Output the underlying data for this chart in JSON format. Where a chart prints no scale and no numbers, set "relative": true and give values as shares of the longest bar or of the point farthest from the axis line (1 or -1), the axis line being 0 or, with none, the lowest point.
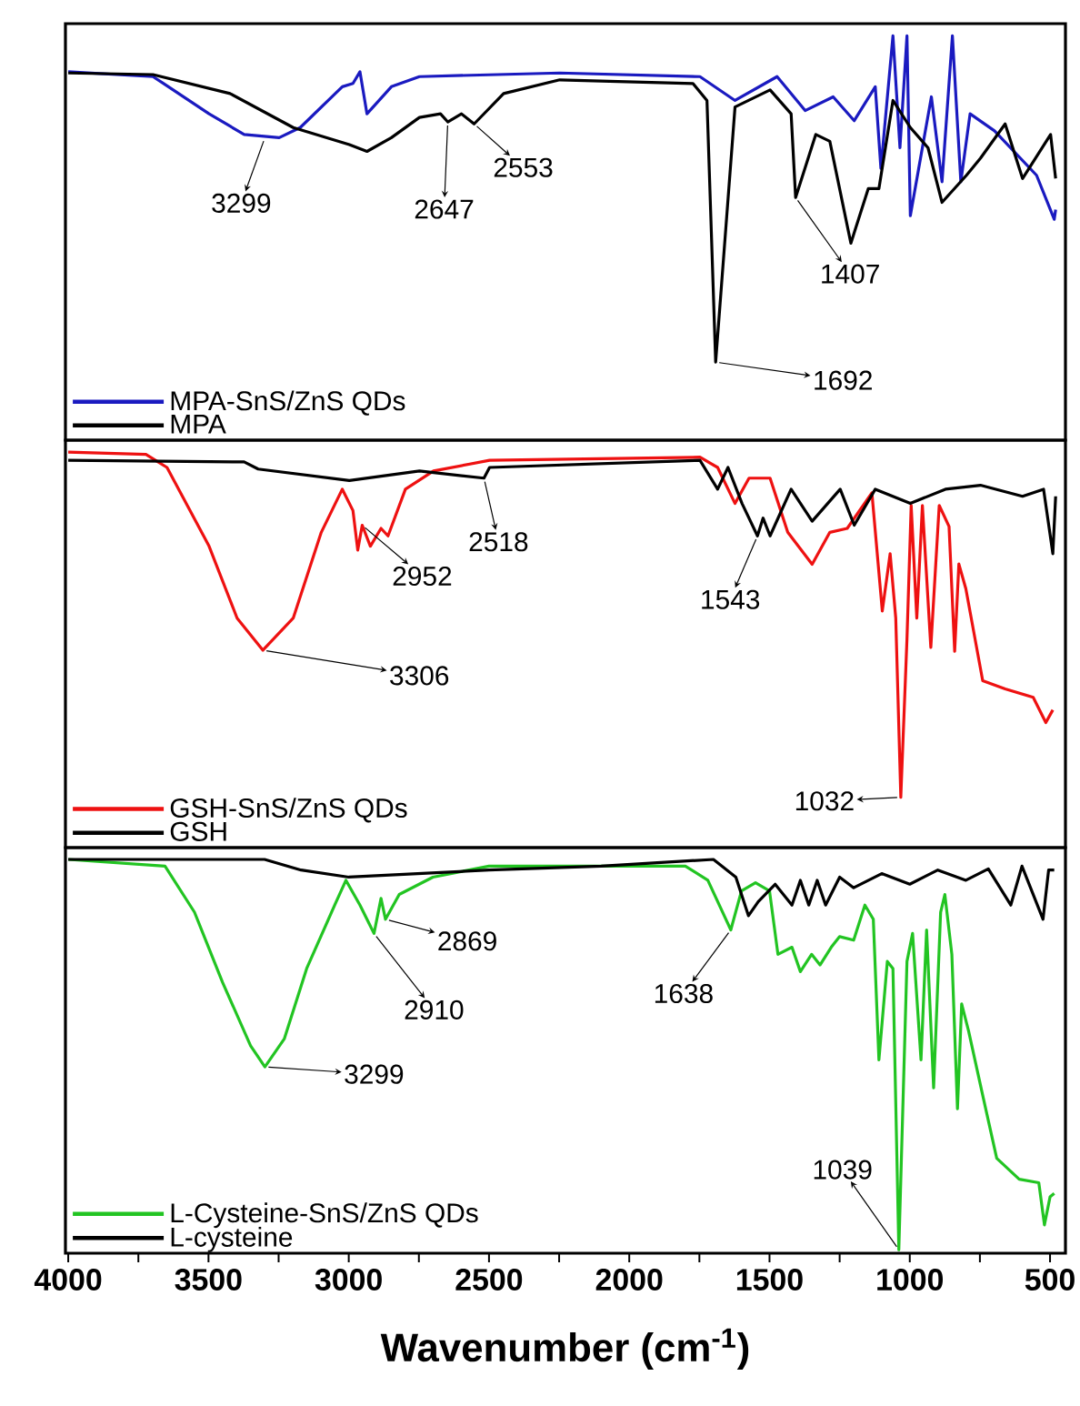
{
  "chart_data": [
    {
      "type": "line",
      "relative": true,
      "xlim": [
        4010,
        445
      ],
      "tick_labels": false,
      "legend": "bottom left",
      "annotations": [
        {
          "text": "3299",
          "x": 3299,
          "y": 0.748
        },
        {
          "text": "2647",
          "x": 2647,
          "y": 0.787
        },
        {
          "text": "2553",
          "x": 2553,
          "y": 0.782
        },
        {
          "text": "1407",
          "x": 1407,
          "y": 0.6
        },
        {
          "text": "1692",
          "x": 1692,
          "y": 0.193
        }
      ],
      "series": [
        {
          "name": "MPA-SnS/ZnS QDs",
          "color": "#1a1ac0",
          "x": [
            4000,
            3698,
            3660,
            3498,
            3373,
            3248,
            3173,
            3023,
            2985,
            2960,
            2935,
            2848,
            2748,
            2248,
            1748,
            1623,
            1473,
            1373,
            1273,
            1198,
            1123,
            1103,
            1060,
            1035,
            1010,
            998,
            923,
            885,
            848,
            818,
            785,
            698,
            548,
            485,
            480
          ],
          "values": [
            0.911,
            0.899,
            0.882,
            0.807,
            0.756,
            0.748,
            0.773,
            0.874,
            0.882,
            0.911,
            0.807,
            0.874,
            0.899,
            0.908,
            0.899,
            0.84,
            0.899,
            0.815,
            0.849,
            0.79,
            0.874,
            0.672,
            1.0,
            0.723,
            1.0,
            0.555,
            0.849,
            0.639,
            1.0,
            0.639,
            0.807,
            0.765,
            0.655,
            0.546,
            0.57
          ]
        },
        {
          "name": "MPA",
          "color": "#000000",
          "x": [
            4000,
            3698,
            3423,
            3198,
            2998,
            2935,
            2848,
            2748,
            2673,
            2647,
            2598,
            2553,
            2448,
            2248,
            1773,
            1723,
            1692,
            1623,
            1498,
            1423,
            1407,
            1335,
            1285,
            1210,
            1148,
            1110,
            1060,
            998,
            935,
            885,
            798,
            748,
            660,
            598,
            498,
            480
          ],
          "values": [
            0.908,
            0.904,
            0.857,
            0.773,
            0.731,
            0.714,
            0.748,
            0.798,
            0.807,
            0.787,
            0.807,
            0.782,
            0.857,
            0.891,
            0.882,
            0.84,
            0.193,
            0.824,
            0.866,
            0.807,
            0.6,
            0.756,
            0.739,
            0.487,
            0.622,
            0.622,
            0.84,
            0.773,
            0.723,
            0.588,
            0.655,
            0.697,
            0.782,
            0.647,
            0.756,
            0.647
          ]
        }
      ]
    },
    {
      "type": "line",
      "relative": true,
      "xlim": [
        4010,
        445
      ],
      "tick_labels": false,
      "legend": "bottom left",
      "annotations": [
        {
          "text": "3306",
          "x": 3306,
          "y": 0.499
        },
        {
          "text": "2952",
          "x": 2952,
          "y": 0.815
        },
        {
          "text": "2518",
          "x": 2518,
          "y": 0.934
        },
        {
          "text": "1543",
          "x": 1543,
          "y": 0.788
        },
        {
          "text": "1032",
          "x": 1032,
          "y": 0.127
        }
      ],
      "series": [
        {
          "name": "GSH-SnS/ZnS QDs",
          "color": "#ee1111",
          "x": [
            4000,
            3723,
            3648,
            3498,
            3398,
            3306,
            3198,
            3098,
            3023,
            2985,
            2968,
            2952,
            2923,
            2885,
            2860,
            2798,
            2698,
            2498,
            1748,
            1685,
            1623,
            1573,
            1498,
            1435,
            1348,
            1285,
            1223,
            1135,
            1098,
            1070,
            1050,
            1032,
            1010,
            995,
            975,
            955,
            925,
            895,
            860,
            840,
            825,
            800,
            740,
            660,
            560,
            515,
            490
          ],
          "values": [
            1.0,
            0.994,
            0.961,
            0.762,
            0.58,
            0.499,
            0.58,
            0.797,
            0.906,
            0.852,
            0.752,
            0.815,
            0.762,
            0.807,
            0.788,
            0.906,
            0.952,
            0.979,
            0.987,
            0.961,
            0.87,
            0.934,
            0.934,
            0.797,
            0.716,
            0.797,
            0.807,
            0.897,
            0.598,
            0.743,
            0.58,
            0.127,
            0.527,
            0.865,
            0.58,
            0.865,
            0.506,
            0.865,
            0.812,
            0.496,
            0.717,
            0.654,
            0.422,
            0.401,
            0.38,
            0.316,
            0.348
          ]
        },
        {
          "name": "GSH",
          "color": "#000000",
          "x": [
            4000,
            3373,
            3323,
            2998,
            2748,
            2518,
            2498,
            1748,
            1685,
            1648,
            1598,
            1543,
            1523,
            1498,
            1423,
            1348,
            1248,
            1198,
            1123,
            998,
            873,
            748,
            598,
            523,
            490,
            480
          ],
          "values": [
            0.979,
            0.975,
            0.957,
            0.928,
            0.952,
            0.934,
            0.961,
            0.979,
            0.906,
            0.961,
            0.87,
            0.788,
            0.833,
            0.788,
            0.906,
            0.825,
            0.906,
            0.815,
            0.906,
            0.87,
            0.906,
            0.916,
            0.888,
            0.906,
            0.743,
            0.888
          ]
        }
      ]
    },
    {
      "type": "line",
      "relative": true,
      "xlim": [
        4010,
        445
      ],
      "tick_labels": "x",
      "legend": "bottom left",
      "xlabel": "Wavenumber (cm$^{-1}$)",
      "xticks": [
        4000,
        {
          "value": 3750,
          "label": null
        },
        3500,
        {
          "value": 3250,
          "label": null
        },
        3000,
        {
          "value": 2750,
          "label": null
        },
        2500,
        {
          "value": 2250,
          "label": null
        },
        2000,
        {
          "value": 1750,
          "label": null
        },
        1500,
        {
          "value": 1250,
          "label": null
        },
        1000,
        {
          "value": 750,
          "label": null
        },
        500
      ],
      "annotations": [
        {
          "text": "3299",
          "x": 3299,
          "y": 0.473
        },
        {
          "text": "2910",
          "x": 2910,
          "y": 0.812
        },
        {
          "text": "2869",
          "x": 2869,
          "y": 0.848
        },
        {
          "text": "1638",
          "x": 1638,
          "y": 0.821
        },
        {
          "text": "1039",
          "x": 1039,
          "y": 0.009
        }
      ],
      "series": [
        {
          "name": "L-Cysteine-SnS/ZnS QDs",
          "color": "#22c422",
          "x": [
            4000,
            3655,
            3550,
            3450,
            3350,
            3299,
            3230,
            3150,
            3050,
            3010,
            2960,
            2910,
            2885,
            2869,
            2820,
            2700,
            2500,
            1800,
            1720,
            1638,
            1600,
            1550,
            1500,
            1470,
            1420,
            1390,
            1350,
            1320,
            1280,
            1250,
            1200,
            1160,
            1130,
            1110,
            1080,
            1060,
            1039,
            1010,
            990,
            960,
            940,
            915,
            890,
            875,
            850,
            830,
            815,
            790,
            740,
            690,
            610,
            540,
            520,
            500,
            485
          ],
          "values": [
            1.0,
            0.983,
            0.866,
            0.688,
            0.527,
            0.473,
            0.544,
            0.723,
            0.884,
            0.947,
            0.884,
            0.812,
            0.901,
            0.848,
            0.911,
            0.955,
            0.983,
            0.983,
            0.947,
            0.821,
            0.92,
            0.941,
            0.92,
            0.759,
            0.777,
            0.715,
            0.759,
            0.732,
            0.777,
            0.804,
            0.795,
            0.884,
            0.848,
            0.491,
            0.741,
            0.723,
            0.009,
            0.741,
            0.812,
            0.491,
            0.821,
            0.42,
            0.866,
            0.911,
            0.759,
            0.367,
            0.633,
            0.563,
            0.401,
            0.241,
            0.188,
            0.179,
            0.072,
            0.143,
            0.152
          ]
        },
        {
          "name": "L-cysteine",
          "color": "#000000",
          "x": [
            4000,
            3300,
            3170,
            3000,
            2500,
            2100,
            1700,
            1620,
            1575,
            1540,
            1480,
            1420,
            1390,
            1360,
            1330,
            1300,
            1250,
            1200,
            1100,
            1000,
            900,
            800,
            720,
            640,
            600,
            525,
            505,
            485
          ],
          "values": [
            1.0,
            1.0,
            0.973,
            0.955,
            0.973,
            0.983,
            1.0,
            0.955,
            0.857,
            0.893,
            0.937,
            0.884,
            0.947,
            0.884,
            0.947,
            0.884,
            0.955,
            0.928,
            0.964,
            0.937,
            0.973,
            0.947,
            0.976,
            0.884,
            0.983,
            0.848,
            0.973,
            0.973
          ]
        }
      ]
    }
  ]
}
